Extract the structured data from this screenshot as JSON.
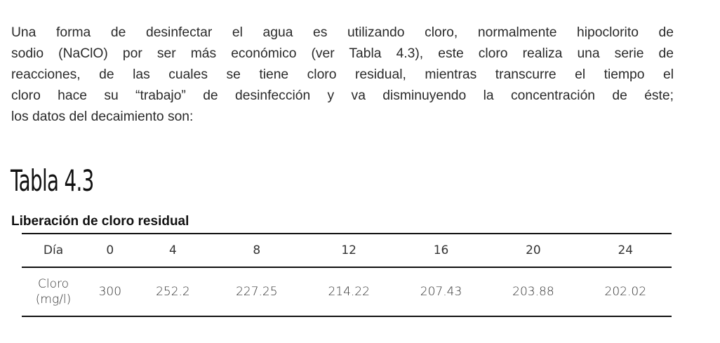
{
  "paragraph": {
    "lines": [
      "Una forma de desinfectar el agua es utilizando cloro, normalmente hipoclorito de",
      "sodio (NaClO) por ser más económico (ver Tabla 4.3), este cloro realiza una serie de",
      "reacciones, de las cuales se tiene cloro residual, mientras transcurre el tiempo el",
      "cloro hace su “trabajo” de desinfección y va disminuyendo la concentración de éste;",
      "los datos del decaimiento son:"
    ]
  },
  "table": {
    "title": "Tabla 4.3",
    "caption": "Liberación de cloro residual",
    "header": {
      "label": "Día",
      "values": [
        "0",
        "4",
        "8",
        "12",
        "16",
        "20",
        "24"
      ]
    },
    "row": {
      "label_line1": "Cloro",
      "label_line2": "(mg/l)",
      "values": [
        "300",
        "252.2",
        "227.25",
        "214.22",
        "207.43",
        "203.88",
        "202.02"
      ]
    }
  }
}
